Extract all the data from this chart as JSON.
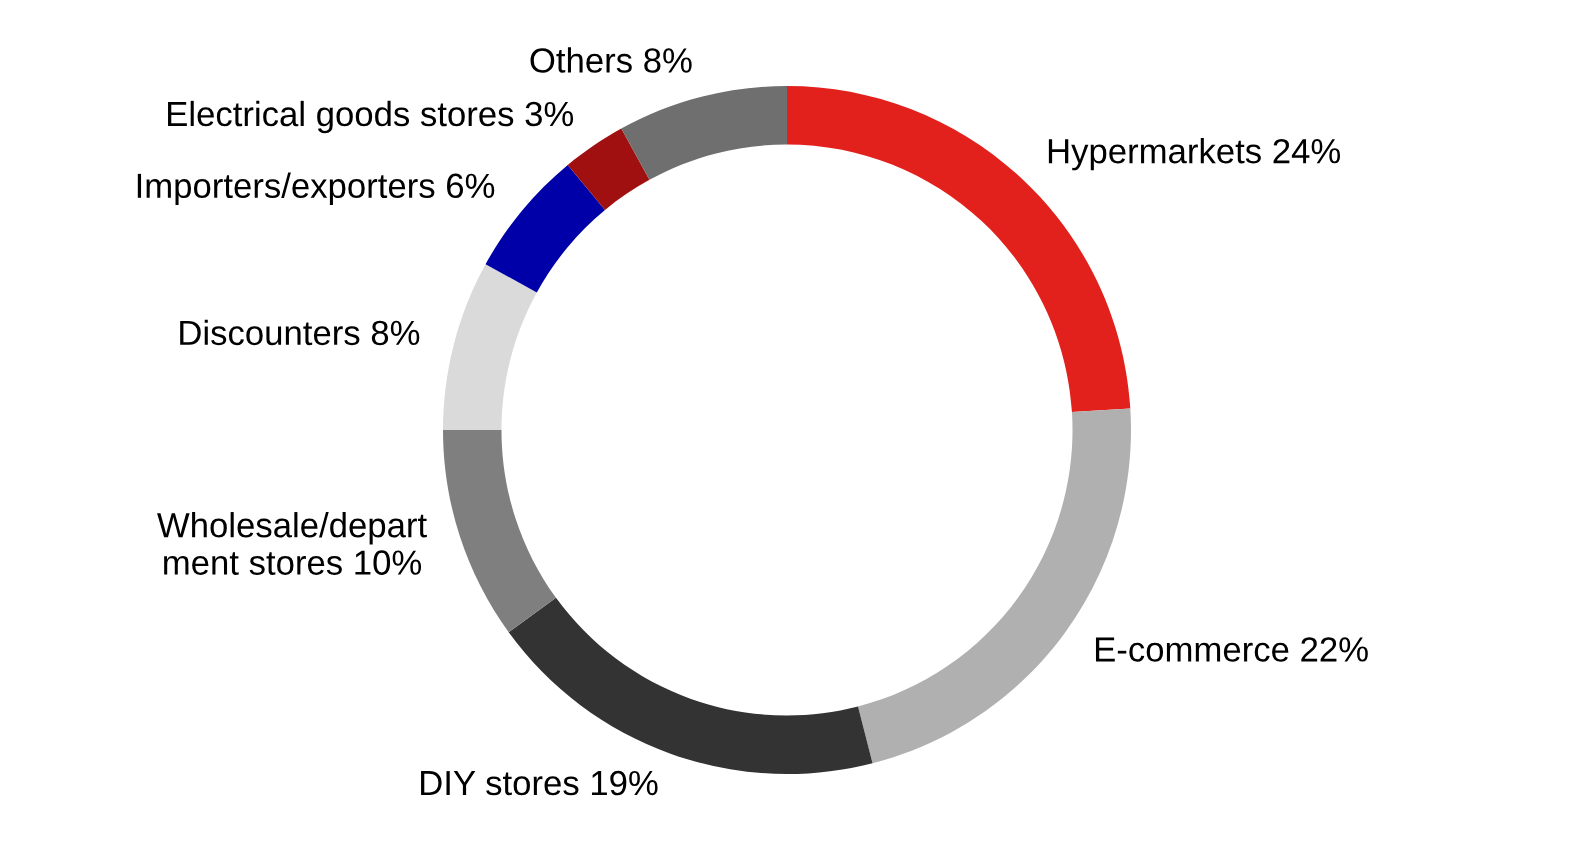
{
  "chart_data": {
    "type": "donut",
    "categories": [
      "Hypermarkets",
      "E-commerce",
      "DIY stores",
      "Wholesale/depart\nment stores",
      "Discounters",
      "Importers/exporters",
      "Electrical goods stores",
      "Others"
    ],
    "values": [
      24,
      22,
      19,
      10,
      8,
      6,
      3,
      8
    ],
    "value_labels": [
      "24%",
      "22%",
      "19%",
      "10%",
      "8%",
      "6%",
      "3%",
      "8%"
    ],
    "colors": [
      "#e2201c",
      "#b0b0b0",
      "#333333",
      "#7f7f7f",
      "#dadada",
      "#0000a8",
      "#a01010",
      "#6f6f6f"
    ],
    "legend": false
  }
}
